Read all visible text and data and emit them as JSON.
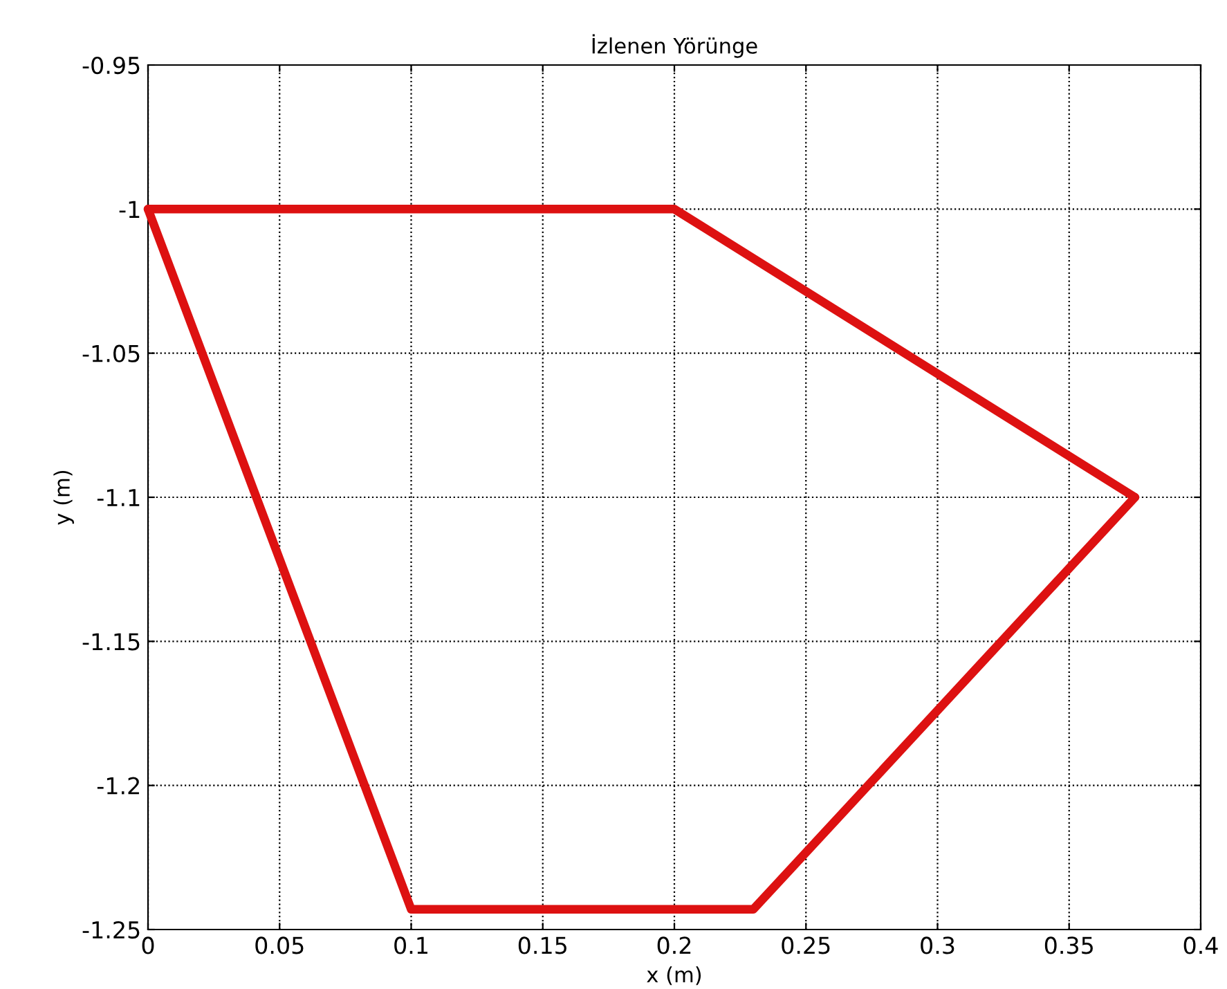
{
  "chart_data": {
    "type": "line",
    "title": "İzlenen Yörünge",
    "xlabel": "x (m)",
    "ylabel": "y (m)",
    "series": [
      {
        "color": "#dd1111",
        "x": [
          0,
          0.2,
          0.375
        ],
        "values": [
          -1,
          -1,
          -1.1
        ]
      },
      {
        "color": "#dd1111",
        "x": [
          0,
          0.1,
          0.23,
          0.375
        ],
        "values": [
          -1,
          -1.243,
          -1.243,
          -1.1
        ]
      }
    ],
    "xlim": [
      0,
      0.4
    ],
    "ylim": [
      -1.25,
      -0.95
    ],
    "xticks": [
      0,
      0.05,
      0.1,
      0.15,
      0.2,
      0.25,
      0.3,
      0.35,
      0.4
    ],
    "yticks": [
      -1.25,
      -1.2,
      -1.15,
      -1.1,
      -1.05,
      -1,
      -0.95
    ],
    "grid": true,
    "line_style": "solid"
  }
}
